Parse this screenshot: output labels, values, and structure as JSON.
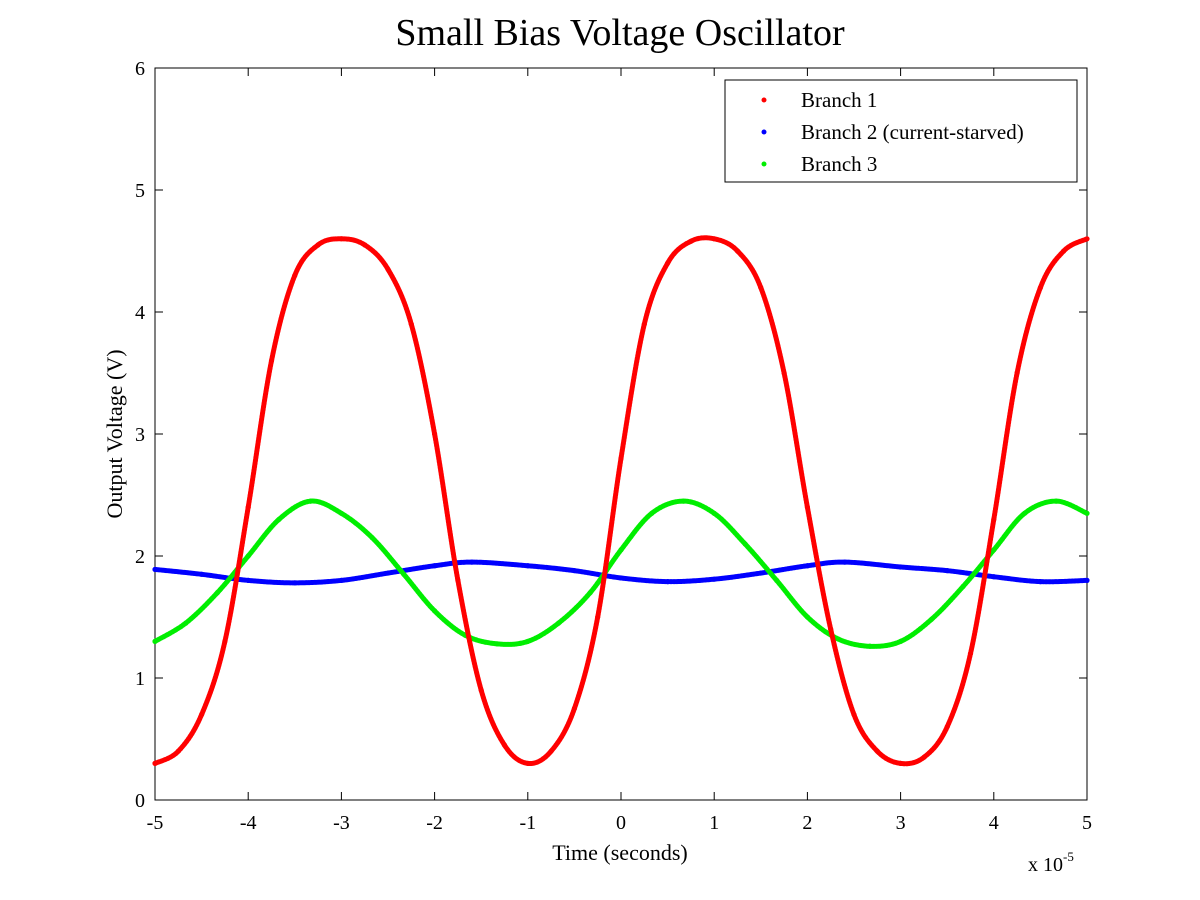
{
  "chart_data": {
    "type": "scatter",
    "title": "Small Bias Voltage Oscillator",
    "xlabel": "Time (seconds)",
    "ylabel": "Output Voltage (V)",
    "x_multiplier_base": "x 10",
    "x_multiplier_exponent": "-5",
    "xlim": [
      -5,
      5
    ],
    "ylim": [
      0,
      6
    ],
    "xticks": [
      "-5",
      "-4",
      "-3",
      "-2",
      "-1",
      "0",
      "1",
      "2",
      "3",
      "4",
      "5"
    ],
    "yticks": [
      "0",
      "1",
      "2",
      "3",
      "4",
      "5",
      "6"
    ],
    "grid": false,
    "legend_position": "top-right",
    "series": [
      {
        "name": "Branch 1",
        "color": "#ff0000",
        "x": [
          -5.0,
          -4.75,
          -4.5,
          -4.25,
          -4.0,
          -3.75,
          -3.5,
          -3.25,
          -3.0,
          -2.75,
          -2.5,
          -2.25,
          -2.0,
          -1.75,
          -1.5,
          -1.25,
          -1.0,
          -0.75,
          -0.5,
          -0.25,
          0.0,
          0.25,
          0.5,
          0.75,
          1.0,
          1.25,
          1.5,
          1.75,
          2.0,
          2.25,
          2.5,
          2.75,
          3.0,
          3.25,
          3.5,
          3.75,
          4.0,
          4.25,
          4.5,
          4.75,
          5.0
        ],
        "y": [
          0.3,
          0.4,
          0.7,
          1.3,
          2.4,
          3.6,
          4.3,
          4.55,
          4.6,
          4.55,
          4.35,
          3.9,
          3.0,
          1.8,
          0.9,
          0.45,
          0.3,
          0.4,
          0.75,
          1.5,
          2.8,
          3.9,
          4.4,
          4.58,
          4.6,
          4.5,
          4.2,
          3.5,
          2.4,
          1.4,
          0.7,
          0.4,
          0.3,
          0.35,
          0.6,
          1.2,
          2.3,
          3.5,
          4.2,
          4.5,
          4.6
        ]
      },
      {
        "name": "Branch 2 (current-starved)",
        "color": "#0000ff",
        "x": [
          -5.0,
          -4.5,
          -4.0,
          -3.5,
          -3.0,
          -2.5,
          -2.0,
          -1.6,
          -1.0,
          -0.5,
          0.0,
          0.5,
          1.0,
          1.5,
          2.0,
          2.4,
          3.0,
          3.5,
          4.0,
          4.5,
          5.0
        ],
        "y": [
          1.89,
          1.85,
          1.8,
          1.78,
          1.8,
          1.86,
          1.92,
          1.95,
          1.92,
          1.88,
          1.82,
          1.79,
          1.81,
          1.86,
          1.92,
          1.95,
          1.91,
          1.88,
          1.83,
          1.79,
          1.8
        ]
      },
      {
        "name": "Branch 3",
        "color": "#00ee00",
        "x": [
          -5.0,
          -4.67,
          -4.33,
          -4.0,
          -3.67,
          -3.33,
          -3.0,
          -2.67,
          -2.33,
          -2.0,
          -1.67,
          -1.33,
          -1.0,
          -0.67,
          -0.33,
          0.0,
          0.33,
          0.67,
          1.0,
          1.33,
          1.67,
          2.0,
          2.33,
          2.67,
          3.0,
          3.33,
          3.67,
          4.0,
          4.33,
          4.67,
          5.0
        ],
        "y": [
          1.3,
          1.45,
          1.7,
          2.0,
          2.3,
          2.45,
          2.35,
          2.15,
          1.85,
          1.55,
          1.35,
          1.28,
          1.3,
          1.45,
          1.7,
          2.05,
          2.35,
          2.45,
          2.35,
          2.1,
          1.8,
          1.5,
          1.32,
          1.26,
          1.3,
          1.48,
          1.75,
          2.05,
          2.35,
          2.45,
          2.35
        ]
      }
    ]
  }
}
